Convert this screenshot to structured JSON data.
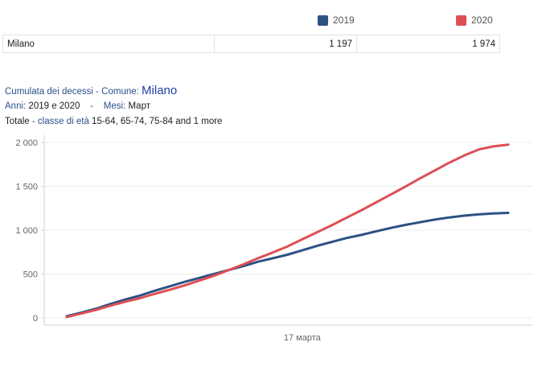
{
  "legend": {
    "items": [
      {
        "label": "2019",
        "color": "#2c5283"
      },
      {
        "label": "2020",
        "color": "#de4f55"
      }
    ]
  },
  "summary_row": {
    "name": "Milano",
    "value_2019": "1 197",
    "value_2020": "1 974"
  },
  "info": {
    "line1_label": "Cumulata dei decessi -  Comune:",
    "line1_value": "Milano",
    "line2_label_a": "Anni:",
    "line2_value_a": "2019 e 2020",
    "line2_sep": "-",
    "line2_label_b": "Mesi:",
    "line2_value_b": "Март",
    "line3_label_a": "Totale",
    "line3_label_b": "- classe di età",
    "line3_value": "15-64, 65-74, 75-84 and 1 more"
  },
  "chart_data": {
    "type": "line",
    "x": [
      1,
      2,
      3,
      4,
      5,
      6,
      7,
      8,
      9,
      10,
      11,
      12,
      13,
      14,
      15,
      16,
      17,
      18,
      19,
      20,
      21,
      22,
      23,
      24,
      25,
      26,
      27,
      28,
      29,
      30,
      31
    ],
    "x_tick_label": "17 марта",
    "x_tick_at": 17,
    "ylim": [
      0,
      2000
    ],
    "yticks": [
      {
        "value": 0,
        "label": "0"
      },
      {
        "value": 500,
        "label": "500"
      },
      {
        "value": 1000,
        "label": "1 000"
      },
      {
        "value": 1500,
        "label": "1 500"
      },
      {
        "value": 2000,
        "label": "2 000"
      }
    ],
    "grid": true,
    "series": [
      {
        "name": "2019",
        "color": "#2c5283",
        "values": [
          18,
          60,
          105,
          160,
          210,
          255,
          310,
          360,
          410,
          455,
          500,
          545,
          590,
          640,
          680,
          720,
          770,
          820,
          865,
          910,
          945,
          985,
          1025,
          1060,
          1090,
          1120,
          1145,
          1165,
          1180,
          1190,
          1197
        ]
      },
      {
        "name": "2020",
        "color": "#de4f55",
        "values": [
          10,
          50,
          92,
          140,
          185,
          225,
          275,
          320,
          370,
          425,
          480,
          545,
          610,
          680,
          745,
          815,
          895,
          975,
          1055,
          1140,
          1225,
          1315,
          1405,
          1495,
          1590,
          1680,
          1770,
          1850,
          1920,
          1955,
          1974
        ]
      }
    ]
  }
}
